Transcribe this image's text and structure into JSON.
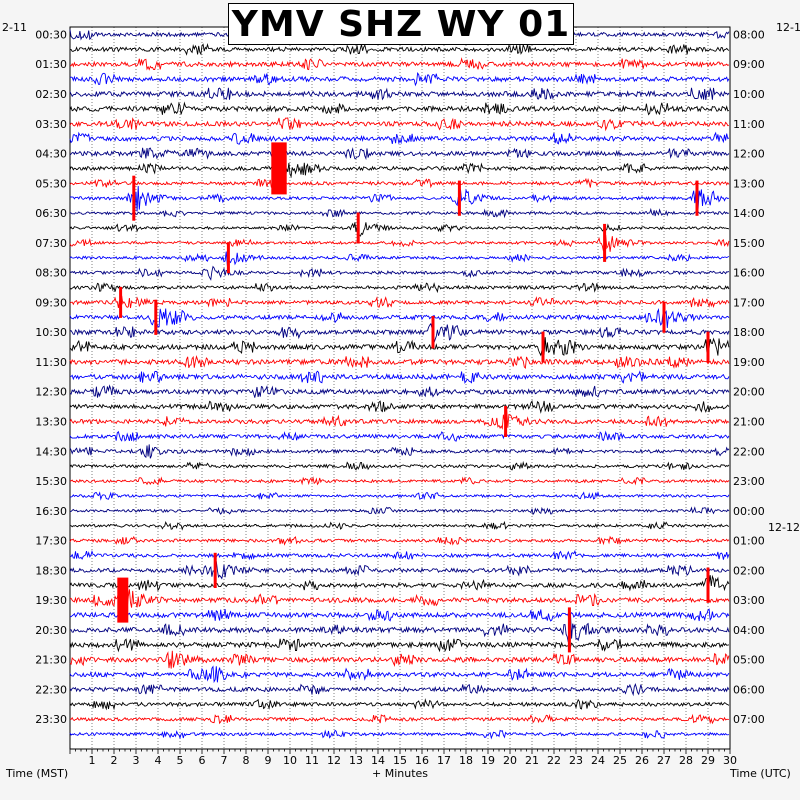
{
  "header": {
    "title": "YMV SHZ WY 01",
    "left_date": "2-11",
    "right_date_top": "12-1",
    "right_date_mid": "12-12"
  },
  "footer": {
    "left_label": "Time (MST)",
    "center_label": "+ Minutes",
    "right_label": "Time (UTC)"
  },
  "colors": {
    "trace_cycle": [
      "#000080",
      "#000000",
      "#ff0000",
      "#0000ff"
    ],
    "clip": "#ff0000",
    "grid": "#000000",
    "background": "#f5f5f5",
    "plot_bg": "#ffffff"
  },
  "chart_data": {
    "type": "helicorder",
    "title": "YMV SHZ WY 01",
    "xlabel": "+ Minutes",
    "ylabel_left": "Time (MST)",
    "ylabel_right": "Time (UTC)",
    "x_ticks": [
      "1",
      "2",
      "3",
      "4",
      "5",
      "6",
      "7",
      "8",
      "9",
      "10",
      "11",
      "12",
      "13",
      "14",
      "15",
      "16",
      "17",
      "18",
      "19",
      "20",
      "21",
      "22",
      "23",
      "24",
      "25",
      "26",
      "27",
      "28",
      "29",
      "30"
    ],
    "xlim": [
      0,
      30
    ],
    "line_minutes": 30,
    "lines_per_day": 48,
    "left_ticks": [
      "00:30",
      "01:30",
      "02:30",
      "03:30",
      "04:30",
      "05:30",
      "06:30",
      "07:30",
      "08:30",
      "09:30",
      "10:30",
      "11:30",
      "12:30",
      "13:30",
      "14:30",
      "15:30",
      "16:30",
      "17:30",
      "18:30",
      "19:30",
      "20:30",
      "21:30",
      "22:30",
      "23:30"
    ],
    "right_ticks": [
      "08:00",
      "09:00",
      "10:00",
      "11:00",
      "12:00",
      "13:00",
      "14:00",
      "15:00",
      "16:00",
      "17:00",
      "18:00",
      "19:00",
      "20:00",
      "21:00",
      "22:00",
      "23:00",
      "00:00",
      "01:00",
      "02:00",
      "03:00",
      "04:00",
      "05:00",
      "06:00",
      "07:00"
    ],
    "events": [
      {
        "line": 8,
        "minute": 3.4,
        "amp": 1.2
      },
      {
        "line": 9,
        "minute": 9.5,
        "amp": 3.0,
        "clip": true,
        "duration": 0.7
      },
      {
        "line": 11,
        "minute": 2.9,
        "amp": 2.5,
        "clip": true
      },
      {
        "line": 11,
        "minute": 17.7,
        "amp": 1.8,
        "clip": true
      },
      {
        "line": 11,
        "minute": 28.5,
        "amp": 1.8,
        "clip": true
      },
      {
        "line": 13,
        "minute": 13.1,
        "amp": 1.5,
        "clip": true
      },
      {
        "line": 14,
        "minute": 24.3,
        "amp": 2.0,
        "clip": true
      },
      {
        "line": 15,
        "minute": 7.2,
        "amp": 1.5,
        "clip": true
      },
      {
        "line": 16,
        "minute": 6.3,
        "amp": 1.2
      },
      {
        "line": 18,
        "minute": 2.3,
        "amp": 1.5,
        "clip": true
      },
      {
        "line": 19,
        "minute": 3.9,
        "amp": 1.8,
        "clip": true
      },
      {
        "line": 19,
        "minute": 27.0,
        "amp": 1.5,
        "clip": true
      },
      {
        "line": 20,
        "minute": 16.5,
        "amp": 1.6,
        "clip": true
      },
      {
        "line": 21,
        "minute": 21.5,
        "amp": 1.5,
        "clip": true
      },
      {
        "line": 21,
        "minute": 29.0,
        "amp": 1.5,
        "clip": true
      },
      {
        "line": 22,
        "minute": 25.0,
        "amp": 1.2
      },
      {
        "line": 26,
        "minute": 19.8,
        "amp": 1.5,
        "clip": true
      },
      {
        "line": 28,
        "minute": 3.5,
        "amp": 1.3
      },
      {
        "line": 36,
        "minute": 6.6,
        "amp": 1.8,
        "clip": true
      },
      {
        "line": 37,
        "minute": 29.0,
        "amp": 1.8,
        "clip": true
      },
      {
        "line": 38,
        "minute": 2.4,
        "amp": 2.5,
        "clip": true,
        "duration": 0.5
      },
      {
        "line": 40,
        "minute": 22.7,
        "amp": 2.5,
        "clip": true
      },
      {
        "line": 42,
        "minute": 4.6,
        "amp": 1.5
      },
      {
        "line": 43,
        "minute": 6.5,
        "amp": 1.3
      }
    ]
  }
}
